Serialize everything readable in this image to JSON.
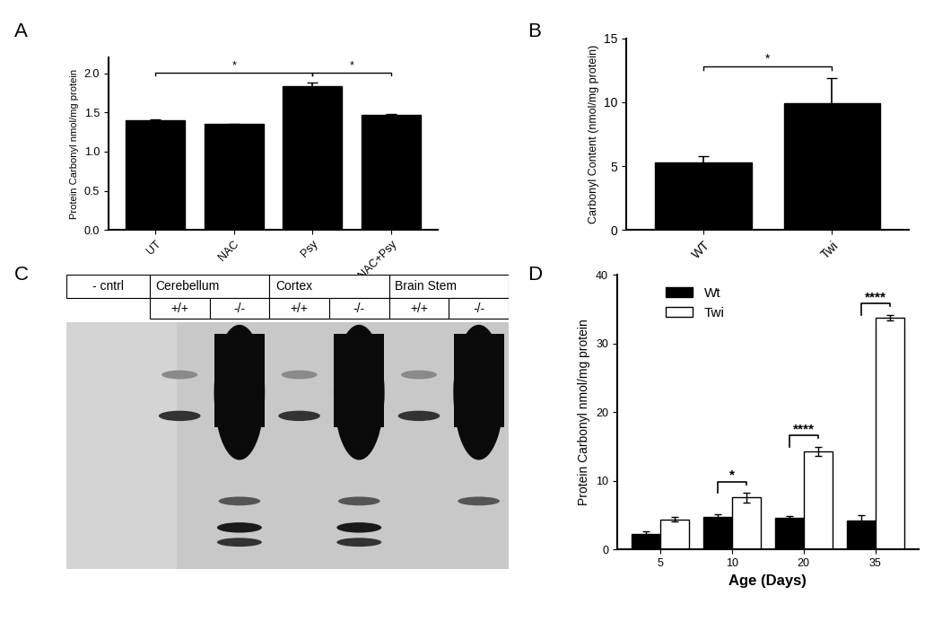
{
  "chart_data": [
    {
      "panel": "A",
      "type": "bar",
      "ylabel": "Protein Carbonyl nmol/mg protein",
      "categories": [
        "UT",
        "NAC",
        "Psy",
        "NAC+Psy"
      ],
      "values": [
        1.4,
        1.35,
        1.84,
        1.47
      ],
      "errors": [
        0.01,
        0.005,
        0.04,
        0.01
      ],
      "color": "#000000",
      "ylim": [
        0,
        2.2
      ],
      "yticks": [
        {
          "value": 0,
          "label": "0.0"
        },
        0.5,
        {
          "value": 1,
          "label": "1.0"
        },
        1.5,
        {
          "value": 2,
          "label": "2.0"
        }
      ],
      "significance": [
        {
          "categories": [
            "UT",
            "Psy"
          ],
          "label": "*"
        },
        {
          "categories": [
            "Psy",
            "NAC+Psy"
          ],
          "label": "*"
        }
      ]
    },
    {
      "panel": "B",
      "type": "bar",
      "ylabel": "Carbonyl Content (nmol/mg protein)",
      "categories": [
        "WT",
        "Twi"
      ],
      "values": [
        5.3,
        9.9
      ],
      "errors": [
        0.5,
        2.0
      ],
      "color": "#000000",
      "ylim": [
        0,
        15
      ],
      "yticks": [
        0,
        5,
        10,
        15
      ],
      "significance": [
        {
          "categories": [
            "WT",
            "Twi"
          ],
          "label": "*"
        }
      ]
    },
    {
      "panel": "D",
      "type": "bar",
      "ylabel": "Protein Carbonyl nmol/mg protein",
      "xlabel": "Age (Days)",
      "categories": [
        "5",
        "10",
        "20",
        "35"
      ],
      "series": [
        {
          "name": "Wt",
          "color": "#000000",
          "values": [
            2.3,
            4.7,
            4.6,
            4.2
          ],
          "errors": [
            0.3,
            0.5,
            0.3,
            0.8
          ]
        },
        {
          "name": "Twi",
          "color": "#ffffff",
          "values": [
            4.4,
            7.6,
            14.3,
            33.8
          ],
          "errors": [
            0.3,
            0.7,
            0.7,
            0.4
          ]
        }
      ],
      "ylim": [
        0,
        40
      ],
      "yticks": [
        0,
        10,
        20,
        30,
        40
      ],
      "legend": "upper left",
      "significance": [
        {
          "categories": [
            "10"
          ],
          "label": "*"
        },
        {
          "categories": [
            "20"
          ],
          "label": "****"
        },
        {
          "categories": [
            "35"
          ],
          "label": "****"
        }
      ]
    }
  ],
  "blot": {
    "panel": "C",
    "groups": [
      {
        "name": "- cntrl",
        "genotypes": []
      },
      {
        "name": "Cerebellum",
        "genotypes": [
          "+/+",
          "-/-"
        ]
      },
      {
        "name": "Cortex",
        "genotypes": [
          "+/+",
          "-/-"
        ]
      },
      {
        "name": "Brain Stem",
        "genotypes": [
          "+/+",
          "-/-"
        ]
      }
    ]
  }
}
